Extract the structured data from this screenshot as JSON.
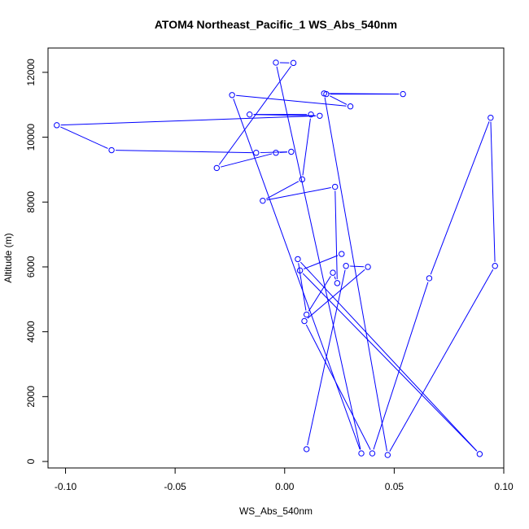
{
  "chart_data": {
    "type": "line",
    "title": "ATOM4 Northeast_Pacific_1 WS_Abs_540nm",
    "xlabel": "WS_Abs_540nm",
    "ylabel": "Altitude (m)",
    "xlim": [
      -0.108,
      0.1
    ],
    "ylim": [
      -200,
      12750
    ],
    "xticks": [
      -0.1,
      -0.05,
      0.0,
      0.05,
      0.1
    ],
    "xtick_labels": [
      "-0.10",
      "-0.05",
      "0.00",
      "0.05",
      "0.10"
    ],
    "yticks": [
      0,
      2000,
      4000,
      6000,
      8000,
      10000,
      12000
    ],
    "ytick_labels": [
      "0",
      "2000",
      "4000",
      "6000",
      "8000",
      "10000",
      "12000"
    ],
    "grid": false,
    "markers": "open-circle",
    "color": "#0000ff",
    "series": [
      {
        "x": [
          0.01,
          0.028,
          0.038,
          0.009,
          0.04,
          0.066,
          0.094,
          0.096,
          0.047,
          0.018,
          0.054,
          0.019,
          0.03,
          -0.024,
          0.035,
          -0.004,
          0.004,
          -0.031,
          -0.004,
          0.003,
          -0.013,
          -0.079,
          -0.104,
          0.016,
          -0.016,
          0.012,
          0.008,
          -0.01,
          0.023,
          0.024,
          0.022,
          0.01,
          0.006,
          0.089,
          0.007,
          0.026
        ],
        "y": [
          380,
          6030,
          6000,
          4330,
          250,
          5650,
          10600,
          6030,
          200,
          11350,
          11330,
          11330,
          10950,
          11300,
          250,
          12300,
          12290,
          9050,
          9520,
          9550,
          9520,
          9600,
          10370,
          10660,
          10700,
          10700,
          8700,
          8040,
          8470,
          5500,
          5820,
          4530,
          6240,
          230,
          5890,
          6400
        ]
      }
    ]
  }
}
